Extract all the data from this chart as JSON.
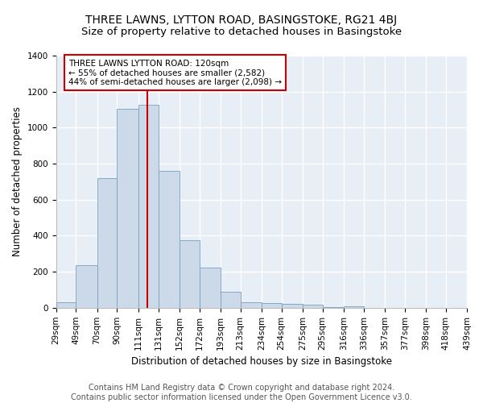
{
  "title": "THREE LAWNS, LYTTON ROAD, BASINGSTOKE, RG21 4BJ",
  "subtitle": "Size of property relative to detached houses in Basingstoke",
  "xlabel": "Distribution of detached houses by size in Basingstoke",
  "ylabel": "Number of detached properties",
  "bar_color": "#ccd9e8",
  "bar_edge_color": "#7aa0c0",
  "background_color": "#e8eef6",
  "grid_color": "#ffffff",
  "bin_edges": [
    29,
    49,
    70,
    90,
    111,
    131,
    152,
    172,
    193,
    213,
    234,
    254,
    275,
    295,
    316,
    336,
    357,
    377,
    398,
    418,
    439
  ],
  "bin_labels": [
    "29sqm",
    "49sqm",
    "70sqm",
    "90sqm",
    "111sqm",
    "131sqm",
    "152sqm",
    "172sqm",
    "193sqm",
    "213sqm",
    "234sqm",
    "254sqm",
    "275sqm",
    "295sqm",
    "316sqm",
    "336sqm",
    "357sqm",
    "377sqm",
    "398sqm",
    "418sqm",
    "439sqm"
  ],
  "bar_heights": [
    30,
    235,
    720,
    1105,
    1125,
    760,
    375,
    225,
    90,
    30,
    25,
    20,
    15,
    5,
    10,
    0,
    0,
    0,
    0,
    0
  ],
  "vline_x": 120,
  "vline_color": "#cc0000",
  "annotation_line1": "THREE LAWNS LYTTON ROAD: 120sqm",
  "annotation_line2": "← 55% of detached houses are smaller (2,582)",
  "annotation_line3": "44% of semi-detached houses are larger (2,098) →",
  "annotation_box_color": "#cc0000",
  "ylim": [
    0,
    1400
  ],
  "yticks": [
    0,
    200,
    400,
    600,
    800,
    1000,
    1200,
    1400
  ],
  "footer_text": "Contains HM Land Registry data © Crown copyright and database right 2024.\nContains public sector information licensed under the Open Government Licence v3.0.",
  "title_fontsize": 10,
  "subtitle_fontsize": 9.5,
  "label_fontsize": 8.5,
  "tick_fontsize": 7.5,
  "annotation_fontsize": 7.5,
  "footer_fontsize": 7
}
